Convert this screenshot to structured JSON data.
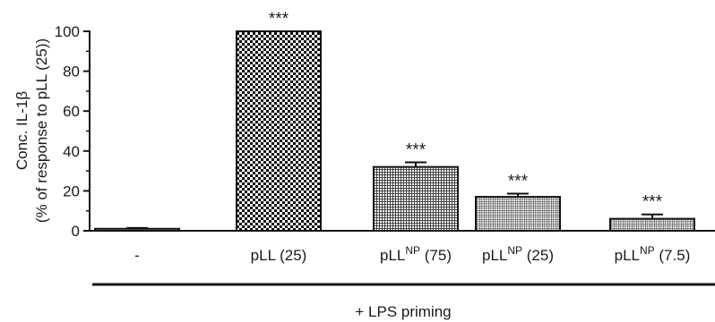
{
  "chart_data": {
    "type": "bar",
    "categories": [
      {
        "base": "-",
        "sup": "",
        "suffix": ""
      },
      {
        "base": "pLL (25)",
        "sup": "",
        "suffix": ""
      },
      {
        "base": "pLL",
        "sup": "NP",
        "suffix": " (75)"
      },
      {
        "base": "pLL",
        "sup": "NP",
        "suffix": " (25)"
      },
      {
        "base": "pLL",
        "sup": "NP",
        "suffix": " (7.5)"
      }
    ],
    "values": [
      1,
      100,
      32,
      17,
      6
    ],
    "errors": [
      0.4,
      0,
      2.3,
      1.6,
      2.2
    ],
    "significance": [
      "",
      "***",
      "***",
      "***",
      "***"
    ],
    "fills": [
      "none",
      "checker-large",
      "grid-medium",
      "grid-fine",
      "grid-fine"
    ],
    "ylabel_line1": "Conc. IL-1β",
    "ylabel_line2": "(% of response to pLL (25))",
    "yticks": [
      "0",
      "20",
      "40",
      "60",
      "80",
      "100"
    ],
    "ylim": [
      0,
      100
    ],
    "group_label": "+ LPS priming",
    "grid": false
  }
}
